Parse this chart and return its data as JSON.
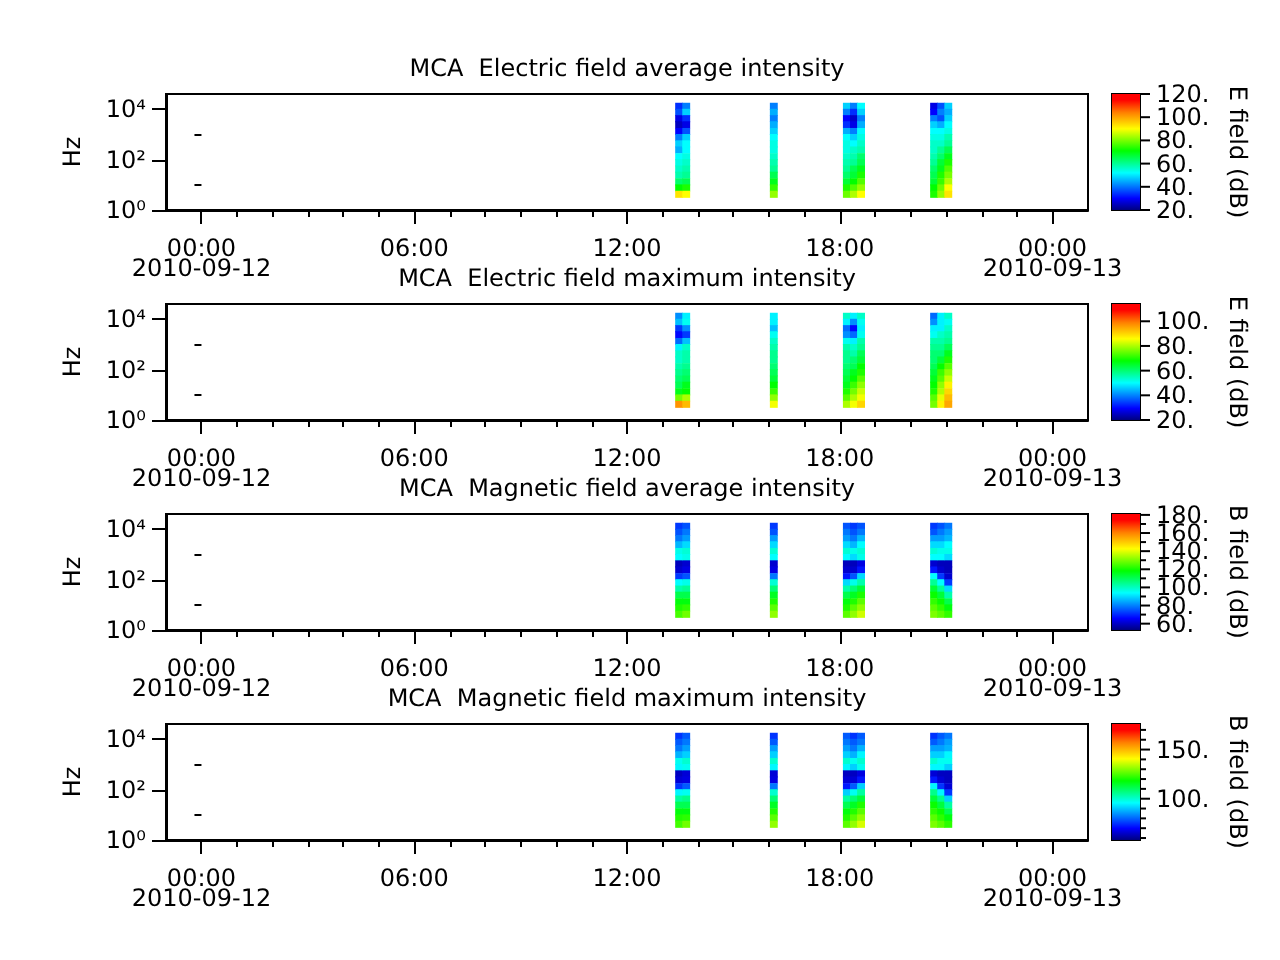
{
  "chart_data": [
    {
      "type": "scatter",
      "title": "MCA  Electric field average intensity",
      "ylabel": "Hz",
      "clabel": "E field (dB)",
      "x": [
        13.47,
        13.47,
        13.47,
        13.47,
        13.47,
        13.47,
        13.47,
        13.47,
        13.47,
        13.47,
        13.47,
        13.47,
        13.47,
        13.47,
        13.47,
        13.67,
        13.67,
        13.67,
        13.67,
        13.67,
        13.67,
        13.67,
        13.67,
        13.67,
        13.67,
        13.67,
        13.67,
        13.67,
        13.67,
        13.67,
        16.14,
        16.14,
        16.14,
        16.14,
        16.14,
        16.14,
        16.14,
        16.14,
        16.14,
        16.14,
        16.14,
        16.14,
        16.14,
        16.14,
        16.14,
        18.2,
        18.2,
        18.2,
        18.2,
        18.2,
        18.2,
        18.2,
        18.2,
        18.2,
        18.2,
        18.2,
        18.2,
        18.2,
        18.2,
        18.2,
        18.4,
        18.4,
        18.4,
        18.4,
        18.4,
        18.4,
        18.4,
        18.4,
        18.4,
        18.4,
        18.4,
        18.4,
        18.4,
        18.4,
        18.4,
        18.6,
        18.6,
        18.6,
        18.6,
        18.6,
        18.6,
        18.6,
        18.6,
        18.6,
        18.6,
        18.6,
        18.6,
        18.6,
        18.6,
        18.6,
        20.66,
        20.66,
        20.66,
        20.66,
        20.66,
        20.66,
        20.66,
        20.66,
        20.66,
        20.66,
        20.66,
        20.66,
        20.66,
        20.66,
        20.66,
        20.86,
        20.86,
        20.86,
        20.86,
        20.86,
        20.86,
        20.86,
        20.86,
        20.86,
        20.86,
        20.86,
        20.86,
        20.86,
        20.86,
        20.86,
        21.06,
        21.06,
        21.06,
        21.06,
        21.06,
        21.06,
        21.06,
        21.06,
        21.06,
        21.06,
        21.06,
        21.06,
        21.06,
        21.06,
        21.06
      ],
      "values": [
        13000,
        7500,
        4200,
        2400,
        1300,
        750,
        420,
        240,
        130,
        75,
        42,
        24,
        13,
        7.5,
        4.2,
        13000,
        7500,
        4200,
        2400,
        1300,
        750,
        420,
        240,
        130,
        75,
        42,
        24,
        13,
        7.5,
        4.2,
        13000,
        7500,
        4200,
        2400,
        1300,
        750,
        420,
        240,
        130,
        75,
        42,
        24,
        13,
        7.5,
        4.2,
        13000,
        7500,
        4200,
        2400,
        1300,
        750,
        420,
        240,
        130,
        75,
        42,
        24,
        13,
        7.5,
        4.2,
        13000,
        7500,
        4200,
        2400,
        1300,
        750,
        420,
        240,
        130,
        75,
        42,
        24,
        13,
        7.5,
        4.2,
        13000,
        7500,
        4200,
        2400,
        1300,
        750,
        420,
        240,
        130,
        75,
        42,
        24,
        13,
        7.5,
        4.2,
        13000,
        7500,
        4200,
        2400,
        1300,
        750,
        420,
        240,
        130,
        75,
        42,
        24,
        13,
        7.5,
        4.2,
        13000,
        7500,
        4200,
        2400,
        1300,
        750,
        420,
        240,
        130,
        75,
        42,
        24,
        13,
        7.5,
        4.2,
        13000,
        7500,
        4200,
        2400,
        1300,
        750,
        420,
        240,
        130,
        75,
        42,
        24,
        13,
        7.5,
        4.2
      ],
      "cvalues": [
        34,
        37,
        28,
        25,
        30,
        41,
        48,
        45,
        52,
        54,
        56,
        58,
        63,
        71,
        93,
        41,
        48,
        34,
        28,
        37,
        48,
        52,
        52,
        54,
        56,
        58,
        60,
        65,
        73,
        90,
        41,
        45,
        41,
        45,
        48,
        52,
        54,
        54,
        56,
        58,
        60,
        65,
        69,
        75,
        82,
        48,
        41,
        30,
        34,
        45,
        52,
        54,
        54,
        56,
        58,
        60,
        63,
        67,
        73,
        79,
        41,
        34,
        26,
        28,
        41,
        48,
        52,
        56,
        58,
        60,
        65,
        67,
        71,
        77,
        84,
        52,
        48,
        41,
        45,
        52,
        54,
        56,
        58,
        63,
        65,
        69,
        73,
        77,
        82,
        90,
        28,
        30,
        41,
        48,
        52,
        54,
        56,
        56,
        58,
        60,
        63,
        65,
        67,
        71,
        73,
        37,
        41,
        37,
        45,
        52,
        54,
        56,
        60,
        63,
        67,
        69,
        73,
        75,
        79,
        82,
        48,
        45,
        48,
        52,
        54,
        58,
        60,
        65,
        69,
        73,
        77,
        80,
        84,
        90,
        93
      ],
      "marker": "square",
      "xlim": [
        -1,
        25
      ],
      "xticks": [
        {
          "value": 0,
          "label": "00:00\n2010-09-12"
        },
        {
          "value": 1,
          "label": null
        },
        {
          "value": 2,
          "label": null
        },
        {
          "value": 3,
          "label": null
        },
        {
          "value": 4,
          "label": null
        },
        {
          "value": 5,
          "label": null
        },
        {
          "value": 6,
          "label": "06:00"
        },
        {
          "value": 7,
          "label": null
        },
        {
          "value": 8,
          "label": null
        },
        {
          "value": 9,
          "label": null
        },
        {
          "value": 10,
          "label": null
        },
        {
          "value": 11,
          "label": null
        },
        {
          "value": 12,
          "label": "12:00"
        },
        {
          "value": 13,
          "label": null
        },
        {
          "value": 14,
          "label": null
        },
        {
          "value": 15,
          "label": null
        },
        {
          "value": 16,
          "label": null
        },
        {
          "value": 17,
          "label": null
        },
        {
          "value": 18,
          "label": "18:00"
        },
        {
          "value": 19,
          "label": null
        },
        {
          "value": 20,
          "label": null
        },
        {
          "value": 21,
          "label": null
        },
        {
          "value": 22,
          "label": null
        },
        {
          "value": 23,
          "label": null
        },
        {
          "value": 24,
          "label": "00:00\n2010-09-13"
        }
      ],
      "ylim": [
        1,
        40000
      ],
      "yticks": [
        {
          "value": 1,
          "label": "10⁰"
        },
        {
          "value": 10,
          "label": null
        },
        {
          "value": 100,
          "label": "10²"
        },
        {
          "value": 1000,
          "label": null
        },
        {
          "value": 10000,
          "label": "10⁴"
        }
      ],
      "log": "y",
      "clim": [
        20,
        120
      ],
      "cticks": [
        {
          "value": 20,
          "label": "20."
        },
        {
          "value": 40,
          "label": "40."
        },
        {
          "value": 60,
          "label": "60."
        },
        {
          "value": 80,
          "label": "80."
        },
        {
          "value": 100,
          "label": "100."
        },
        {
          "value": 120,
          "label": "120."
        }
      ]
    },
    {
      "type": "scatter",
      "title": "MCA  Electric field maximum intensity",
      "ylabel": "Hz",
      "clabel": "E field (dB)",
      "x": [
        13.47,
        13.47,
        13.47,
        13.47,
        13.47,
        13.47,
        13.47,
        13.47,
        13.47,
        13.47,
        13.47,
        13.47,
        13.47,
        13.47,
        13.47,
        13.67,
        13.67,
        13.67,
        13.67,
        13.67,
        13.67,
        13.67,
        13.67,
        13.67,
        13.67,
        13.67,
        13.67,
        13.67,
        13.67,
        13.67,
        16.14,
        16.14,
        16.14,
        16.14,
        16.14,
        16.14,
        16.14,
        16.14,
        16.14,
        16.14,
        16.14,
        16.14,
        16.14,
        16.14,
        16.14,
        18.2,
        18.2,
        18.2,
        18.2,
        18.2,
        18.2,
        18.2,
        18.2,
        18.2,
        18.2,
        18.2,
        18.2,
        18.2,
        18.2,
        18.2,
        18.4,
        18.4,
        18.4,
        18.4,
        18.4,
        18.4,
        18.4,
        18.4,
        18.4,
        18.4,
        18.4,
        18.4,
        18.4,
        18.4,
        18.4,
        18.6,
        18.6,
        18.6,
        18.6,
        18.6,
        18.6,
        18.6,
        18.6,
        18.6,
        18.6,
        18.6,
        18.6,
        18.6,
        18.6,
        18.6,
        20.66,
        20.66,
        20.66,
        20.66,
        20.66,
        20.66,
        20.66,
        20.66,
        20.66,
        20.66,
        20.66,
        20.66,
        20.66,
        20.66,
        20.66,
        20.86,
        20.86,
        20.86,
        20.86,
        20.86,
        20.86,
        20.86,
        20.86,
        20.86,
        20.86,
        20.86,
        20.86,
        20.86,
        20.86,
        20.86,
        21.06,
        21.06,
        21.06,
        21.06,
        21.06,
        21.06,
        21.06,
        21.06,
        21.06,
        21.06,
        21.06,
        21.06,
        21.06,
        21.06,
        21.06
      ],
      "values": [
        13000,
        7500,
        4200,
        2400,
        1300,
        750,
        420,
        240,
        130,
        75,
        42,
        24,
        13,
        7.5,
        4.2,
        13000,
        7500,
        4200,
        2400,
        1300,
        750,
        420,
        240,
        130,
        75,
        42,
        24,
        13,
        7.5,
        4.2,
        13000,
        7500,
        4200,
        2400,
        1300,
        750,
        420,
        240,
        130,
        75,
        42,
        24,
        13,
        7.5,
        4.2,
        13000,
        7500,
        4200,
        2400,
        1300,
        750,
        420,
        240,
        130,
        75,
        42,
        24,
        13,
        7.5,
        4.2,
        13000,
        7500,
        4200,
        2400,
        1300,
        750,
        420,
        240,
        130,
        75,
        42,
        24,
        13,
        7.5,
        4.2,
        13000,
        7500,
        4200,
        2400,
        1300,
        750,
        420,
        240,
        130,
        75,
        42,
        24,
        13,
        7.5,
        4.2,
        13000,
        7500,
        4200,
        2400,
        1300,
        750,
        420,
        240,
        130,
        75,
        42,
        24,
        13,
        7.5,
        4.2,
        13000,
        7500,
        4200,
        2400,
        1300,
        750,
        420,
        240,
        130,
        75,
        42,
        24,
        13,
        7.5,
        4.2,
        13000,
        7500,
        4200,
        2400,
        1300,
        750,
        420,
        240,
        130,
        75,
        42,
        24,
        13,
        7.5,
        4.2
      ],
      "cvalues": [
        41,
        45,
        34,
        30,
        38,
        49,
        54,
        54,
        56,
        58,
        60,
        62,
        66,
        76,
        97,
        49,
        51,
        41,
        34,
        45,
        54,
        56,
        56,
        58,
        60,
        62,
        66,
        68,
        80,
        93,
        49,
        49,
        45,
        51,
        54,
        56,
        58,
        58,
        60,
        62,
        64,
        68,
        72,
        78,
        85,
        54,
        49,
        38,
        41,
        51,
        56,
        58,
        58,
        60,
        62,
        64,
        66,
        70,
        74,
        80,
        49,
        41,
        30,
        38,
        49,
        54,
        56,
        60,
        62,
        66,
        68,
        72,
        76,
        80,
        85,
        54,
        51,
        49,
        51,
        56,
        58,
        62,
        64,
        68,
        70,
        74,
        78,
        82,
        85,
        90,
        38,
        41,
        49,
        51,
        56,
        58,
        60,
        60,
        62,
        64,
        66,
        68,
        70,
        74,
        76,
        49,
        49,
        49,
        54,
        56,
        58,
        60,
        64,
        68,
        72,
        74,
        78,
        80,
        84,
        87,
        54,
        51,
        54,
        56,
        58,
        62,
        66,
        70,
        74,
        78,
        82,
        87,
        90,
        93,
        95
      ],
      "marker": "square",
      "xlim": [
        -1,
        25
      ],
      "xticks": [
        {
          "value": 0,
          "label": "00:00\n2010-09-12"
        },
        {
          "value": 1,
          "label": null
        },
        {
          "value": 2,
          "label": null
        },
        {
          "value": 3,
          "label": null
        },
        {
          "value": 4,
          "label": null
        },
        {
          "value": 5,
          "label": null
        },
        {
          "value": 6,
          "label": "06:00"
        },
        {
          "value": 7,
          "label": null
        },
        {
          "value": 8,
          "label": null
        },
        {
          "value": 9,
          "label": null
        },
        {
          "value": 10,
          "label": null
        },
        {
          "value": 11,
          "label": null
        },
        {
          "value": 12,
          "label": "12:00"
        },
        {
          "value": 13,
          "label": null
        },
        {
          "value": 14,
          "label": null
        },
        {
          "value": 15,
          "label": null
        },
        {
          "value": 16,
          "label": null
        },
        {
          "value": 17,
          "label": null
        },
        {
          "value": 18,
          "label": "18:00"
        },
        {
          "value": 19,
          "label": null
        },
        {
          "value": 20,
          "label": null
        },
        {
          "value": 21,
          "label": null
        },
        {
          "value": 22,
          "label": null
        },
        {
          "value": 23,
          "label": null
        },
        {
          "value": 24,
          "label": "00:00\n2010-09-13"
        }
      ],
      "ylim": [
        1,
        40000
      ],
      "yticks": [
        {
          "value": 1,
          "label": "10⁰"
        },
        {
          "value": 10,
          "label": null
        },
        {
          "value": 100,
          "label": "10²"
        },
        {
          "value": 1000,
          "label": null
        },
        {
          "value": 10000,
          "label": "10⁴"
        }
      ],
      "log": "y",
      "clim": [
        20,
        114
      ],
      "cticks": [
        {
          "value": 20,
          "label": "20."
        },
        {
          "value": 40,
          "label": "40."
        },
        {
          "value": 60,
          "label": "60."
        },
        {
          "value": 80,
          "label": "80."
        },
        {
          "value": 100,
          "label": "100."
        }
      ]
    },
    {
      "type": "scatter",
      "title": "MCA  Magnetic field average intensity",
      "ylabel": "Hz",
      "clabel": "B field (dB)",
      "x": [
        13.47,
        13.47,
        13.47,
        13.47,
        13.47,
        13.47,
        13.47,
        13.47,
        13.47,
        13.47,
        13.47,
        13.47,
        13.47,
        13.47,
        13.47,
        13.67,
        13.67,
        13.67,
        13.67,
        13.67,
        13.67,
        13.67,
        13.67,
        13.67,
        13.67,
        13.67,
        13.67,
        13.67,
        13.67,
        13.67,
        16.14,
        16.14,
        16.14,
        16.14,
        16.14,
        16.14,
        16.14,
        16.14,
        16.14,
        16.14,
        16.14,
        16.14,
        16.14,
        16.14,
        16.14,
        18.2,
        18.2,
        18.2,
        18.2,
        18.2,
        18.2,
        18.2,
        18.2,
        18.2,
        18.2,
        18.2,
        18.2,
        18.2,
        18.2,
        18.2,
        18.4,
        18.4,
        18.4,
        18.4,
        18.4,
        18.4,
        18.4,
        18.4,
        18.4,
        18.4,
        18.4,
        18.4,
        18.4,
        18.4,
        18.4,
        18.6,
        18.6,
        18.6,
        18.6,
        18.6,
        18.6,
        18.6,
        18.6,
        18.6,
        18.6,
        18.6,
        18.6,
        18.6,
        18.6,
        18.6,
        20.66,
        20.66,
        20.66,
        20.66,
        20.66,
        20.66,
        20.66,
        20.66,
        20.66,
        20.66,
        20.66,
        20.66,
        20.66,
        20.66,
        20.66,
        20.86,
        20.86,
        20.86,
        20.86,
        20.86,
        20.86,
        20.86,
        20.86,
        20.86,
        20.86,
        20.86,
        20.86,
        20.86,
        20.86,
        20.86,
        21.06,
        21.06,
        21.06,
        21.06,
        21.06,
        21.06,
        21.06,
        21.06,
        21.06,
        21.06,
        21.06,
        21.06,
        21.06,
        21.06,
        21.06
      ],
      "values": [
        13000,
        7500,
        4200,
        2400,
        1300,
        750,
        420,
        240,
        130,
        75,
        42,
        24,
        13,
        7.5,
        4.2,
        13000,
        7500,
        4200,
        2400,
        1300,
        750,
        420,
        240,
        130,
        75,
        42,
        24,
        13,
        7.5,
        4.2,
        13000,
        7500,
        4200,
        2400,
        1300,
        750,
        420,
        240,
        130,
        75,
        42,
        24,
        13,
        7.5,
        4.2,
        13000,
        7500,
        4200,
        2400,
        1300,
        750,
        420,
        240,
        130,
        75,
        42,
        24,
        13,
        7.5,
        4.2,
        13000,
        7500,
        4200,
        2400,
        1300,
        750,
        420,
        240,
        130,
        75,
        42,
        24,
        13,
        7.5,
        4.2,
        13000,
        7500,
        4200,
        2400,
        1300,
        750,
        420,
        240,
        130,
        75,
        42,
        24,
        13,
        7.5,
        4.2,
        13000,
        7500,
        4200,
        2400,
        1300,
        750,
        420,
        240,
        130,
        75,
        42,
        24,
        13,
        7.5,
        4.2,
        13000,
        7500,
        4200,
        2400,
        1300,
        750,
        420,
        240,
        130,
        75,
        42,
        24,
        13,
        7.5,
        4.2,
        13000,
        7500,
        4200,
        2400,
        1300,
        750,
        420,
        240,
        130,
        75,
        42,
        24,
        13,
        7.5,
        4.2
      ],
      "cvalues": [
        72,
        75,
        79,
        86,
        96,
        94,
        59,
        61,
        72,
        94,
        102,
        111,
        117,
        121,
        125,
        75,
        79,
        83,
        90,
        98,
        96,
        61,
        63,
        75,
        96,
        104,
        111,
        117,
        123,
        129,
        72,
        75,
        83,
        90,
        98,
        94,
        61,
        63,
        79,
        98,
        107,
        115,
        121,
        127,
        132,
        75,
        79,
        83,
        90,
        98,
        94,
        59,
        61,
        68,
        90,
        102,
        111,
        117,
        121,
        127,
        72,
        75,
        79,
        86,
        96,
        90,
        59,
        61,
        75,
        96,
        107,
        115,
        121,
        127,
        132,
        75,
        79,
        86,
        94,
        98,
        96,
        63,
        68,
        90,
        102,
        113,
        121,
        127,
        132,
        138,
        72,
        75,
        83,
        90,
        98,
        94,
        61,
        68,
        94,
        104,
        113,
        119,
        123,
        127,
        130,
        75,
        79,
        83,
        90,
        96,
        94,
        59,
        61,
        72,
        94,
        104,
        113,
        119,
        123,
        127,
        79,
        83,
        86,
        94,
        96,
        90,
        59,
        59,
        61,
        72,
        90,
        102,
        111,
        117,
        123
      ],
      "marker": "square",
      "xlim": [
        -1,
        25
      ],
      "xticks": [
        {
          "value": 0,
          "label": "00:00\n2010-09-12"
        },
        {
          "value": 1,
          "label": null
        },
        {
          "value": 2,
          "label": null
        },
        {
          "value": 3,
          "label": null
        },
        {
          "value": 4,
          "label": null
        },
        {
          "value": 5,
          "label": null
        },
        {
          "value": 6,
          "label": "06:00"
        },
        {
          "value": 7,
          "label": null
        },
        {
          "value": 8,
          "label": null
        },
        {
          "value": 9,
          "label": null
        },
        {
          "value": 10,
          "label": null
        },
        {
          "value": 11,
          "label": null
        },
        {
          "value": 12,
          "label": "12:00"
        },
        {
          "value": 13,
          "label": null
        },
        {
          "value": 14,
          "label": null
        },
        {
          "value": 15,
          "label": null
        },
        {
          "value": 16,
          "label": null
        },
        {
          "value": 17,
          "label": null
        },
        {
          "value": 18,
          "label": "18:00"
        },
        {
          "value": 19,
          "label": null
        },
        {
          "value": 20,
          "label": null
        },
        {
          "value": 21,
          "label": null
        },
        {
          "value": 22,
          "label": null
        },
        {
          "value": 23,
          "label": null
        },
        {
          "value": 24,
          "label": "00:00\n2010-09-13"
        }
      ],
      "ylim": [
        1,
        40000
      ],
      "yticks": [
        {
          "value": 1,
          "label": "10⁰"
        },
        {
          "value": 10,
          "label": null
        },
        {
          "value": 100,
          "label": "10²"
        },
        {
          "value": 1000,
          "label": null
        },
        {
          "value": 10000,
          "label": "10⁴"
        }
      ],
      "log": "y",
      "clim": [
        53,
        181
      ],
      "cticks": [
        {
          "value": 60,
          "label": "60."
        },
        {
          "value": 70,
          "label": null
        },
        {
          "value": 80,
          "label": "80."
        },
        {
          "value": 90,
          "label": null
        },
        {
          "value": 100,
          "label": "100."
        },
        {
          "value": 110,
          "label": null
        },
        {
          "value": 120,
          "label": "120."
        },
        {
          "value": 130,
          "label": null
        },
        {
          "value": 140,
          "label": "140."
        },
        {
          "value": 150,
          "label": null
        },
        {
          "value": 160,
          "label": "160."
        },
        {
          "value": 170,
          "label": null
        },
        {
          "value": 180,
          "label": "180."
        }
      ]
    },
    {
      "type": "scatter",
      "title": "MCA  Magnetic field maximum intensity",
      "ylabel": "Hz",
      "clabel": "B field (dB)",
      "x": [
        13.47,
        13.47,
        13.47,
        13.47,
        13.47,
        13.47,
        13.47,
        13.47,
        13.47,
        13.47,
        13.47,
        13.47,
        13.47,
        13.47,
        13.47,
        13.67,
        13.67,
        13.67,
        13.67,
        13.67,
        13.67,
        13.67,
        13.67,
        13.67,
        13.67,
        13.67,
        13.67,
        13.67,
        13.67,
        13.67,
        16.14,
        16.14,
        16.14,
        16.14,
        16.14,
        16.14,
        16.14,
        16.14,
        16.14,
        16.14,
        16.14,
        16.14,
        16.14,
        16.14,
        16.14,
        18.2,
        18.2,
        18.2,
        18.2,
        18.2,
        18.2,
        18.2,
        18.2,
        18.2,
        18.2,
        18.2,
        18.2,
        18.2,
        18.2,
        18.2,
        18.4,
        18.4,
        18.4,
        18.4,
        18.4,
        18.4,
        18.4,
        18.4,
        18.4,
        18.4,
        18.4,
        18.4,
        18.4,
        18.4,
        18.4,
        18.6,
        18.6,
        18.6,
        18.6,
        18.6,
        18.6,
        18.6,
        18.6,
        18.6,
        18.6,
        18.6,
        18.6,
        18.6,
        18.6,
        18.6,
        20.66,
        20.66,
        20.66,
        20.66,
        20.66,
        20.66,
        20.66,
        20.66,
        20.66,
        20.66,
        20.66,
        20.66,
        20.66,
        20.66,
        20.66,
        20.86,
        20.86,
        20.86,
        20.86,
        20.86,
        20.86,
        20.86,
        20.86,
        20.86,
        20.86,
        20.86,
        20.86,
        20.86,
        20.86,
        20.86,
        21.06,
        21.06,
        21.06,
        21.06,
        21.06,
        21.06,
        21.06,
        21.06,
        21.06,
        21.06,
        21.06,
        21.06,
        21.06,
        21.06,
        21.06
      ],
      "values": [
        13000,
        7500,
        4200,
        2400,
        1300,
        750,
        420,
        240,
        130,
        75,
        42,
        24,
        13,
        7.5,
        4.2,
        13000,
        7500,
        4200,
        2400,
        1300,
        750,
        420,
        240,
        130,
        75,
        42,
        24,
        13,
        7.5,
        4.2,
        13000,
        7500,
        4200,
        2400,
        1300,
        750,
        420,
        240,
        130,
        75,
        42,
        24,
        13,
        7.5,
        4.2,
        13000,
        7500,
        4200,
        2400,
        1300,
        750,
        420,
        240,
        130,
        75,
        42,
        24,
        13,
        7.5,
        4.2,
        13000,
        7500,
        4200,
        2400,
        1300,
        750,
        420,
        240,
        130,
        75,
        42,
        24,
        13,
        7.5,
        4.2,
        13000,
        7500,
        4200,
        2400,
        1300,
        750,
        420,
        240,
        130,
        75,
        42,
        24,
        13,
        7.5,
        4.2,
        13000,
        7500,
        4200,
        2400,
        1300,
        750,
        420,
        240,
        130,
        75,
        42,
        24,
        13,
        7.5,
        4.2,
        13000,
        7500,
        4200,
        2400,
        1300,
        750,
        420,
        240,
        130,
        75,
        42,
        24,
        13,
        7.5,
        4.2,
        13000,
        7500,
        4200,
        2400,
        1300,
        750,
        420,
        240,
        130,
        75,
        42,
        24,
        13,
        7.5,
        4.2
      ],
      "cvalues": [
        75,
        79,
        82,
        88,
        97,
        95,
        64,
        66,
        75,
        95,
        104,
        111,
        117,
        121,
        124,
        79,
        82,
        86,
        91,
        100,
        97,
        66,
        67,
        79,
        97,
        106,
        111,
        117,
        122,
        128,
        75,
        79,
        86,
        91,
        100,
        95,
        66,
        67,
        82,
        100,
        108,
        115,
        121,
        126,
        131,
        79,
        82,
        86,
        91,
        100,
        95,
        64,
        66,
        72,
        91,
        104,
        111,
        117,
        121,
        126,
        75,
        79,
        82,
        88,
        97,
        91,
        64,
        66,
        79,
        97,
        108,
        115,
        121,
        126,
        131,
        79,
        82,
        88,
        95,
        100,
        97,
        67,
        72,
        91,
        104,
        113,
        121,
        126,
        131,
        137,
        75,
        79,
        86,
        91,
        100,
        95,
        66,
        72,
        95,
        106,
        113,
        119,
        122,
        126,
        129,
        79,
        82,
        86,
        91,
        97,
        95,
        64,
        66,
        75,
        95,
        106,
        113,
        119,
        122,
        126,
        82,
        86,
        88,
        95,
        97,
        91,
        64,
        64,
        66,
        75,
        91,
        104,
        111,
        117,
        122
      ],
      "marker": "square",
      "xlim": [
        -1,
        25
      ],
      "xticks": [
        {
          "value": 0,
          "label": "00:00\n2010-09-12"
        },
        {
          "value": 1,
          "label": null
        },
        {
          "value": 2,
          "label": null
        },
        {
          "value": 3,
          "label": null
        },
        {
          "value": 4,
          "label": null
        },
        {
          "value": 5,
          "label": null
        },
        {
          "value": 6,
          "label": "06:00"
        },
        {
          "value": 7,
          "label": null
        },
        {
          "value": 8,
          "label": null
        },
        {
          "value": 9,
          "label": null
        },
        {
          "value": 10,
          "label": null
        },
        {
          "value": 11,
          "label": null
        },
        {
          "value": 12,
          "label": "12:00"
        },
        {
          "value": 13,
          "label": null
        },
        {
          "value": 14,
          "label": null
        },
        {
          "value": 15,
          "label": null
        },
        {
          "value": 16,
          "label": null
        },
        {
          "value": 17,
          "label": null
        },
        {
          "value": 18,
          "label": "18:00"
        },
        {
          "value": 19,
          "label": null
        },
        {
          "value": 20,
          "label": null
        },
        {
          "value": 21,
          "label": null
        },
        {
          "value": 22,
          "label": null
        },
        {
          "value": 23,
          "label": null
        },
        {
          "value": 24,
          "label": "00:00\n2010-09-13"
        }
      ],
      "ylim": [
        1,
        40000
      ],
      "yticks": [
        {
          "value": 1,
          "label": "10⁰"
        },
        {
          "value": 10,
          "label": null
        },
        {
          "value": 100,
          "label": "10²"
        },
        {
          "value": 1000,
          "label": null
        },
        {
          "value": 10000,
          "label": "10⁴"
        }
      ],
      "log": "y",
      "clim": [
        58,
        176
      ],
      "cticks": [
        {
          "value": 60,
          "label": null
        },
        {
          "value": 70,
          "label": null
        },
        {
          "value": 80,
          "label": null
        },
        {
          "value": 90,
          "label": null
        },
        {
          "value": 100,
          "label": "100."
        },
        {
          "value": 110,
          "label": null
        },
        {
          "value": 120,
          "label": null
        },
        {
          "value": 130,
          "label": null
        },
        {
          "value": 140,
          "label": null
        },
        {
          "value": 150,
          "label": "150."
        },
        {
          "value": 160,
          "label": null
        },
        {
          "value": 170,
          "label": null
        }
      ]
    }
  ]
}
